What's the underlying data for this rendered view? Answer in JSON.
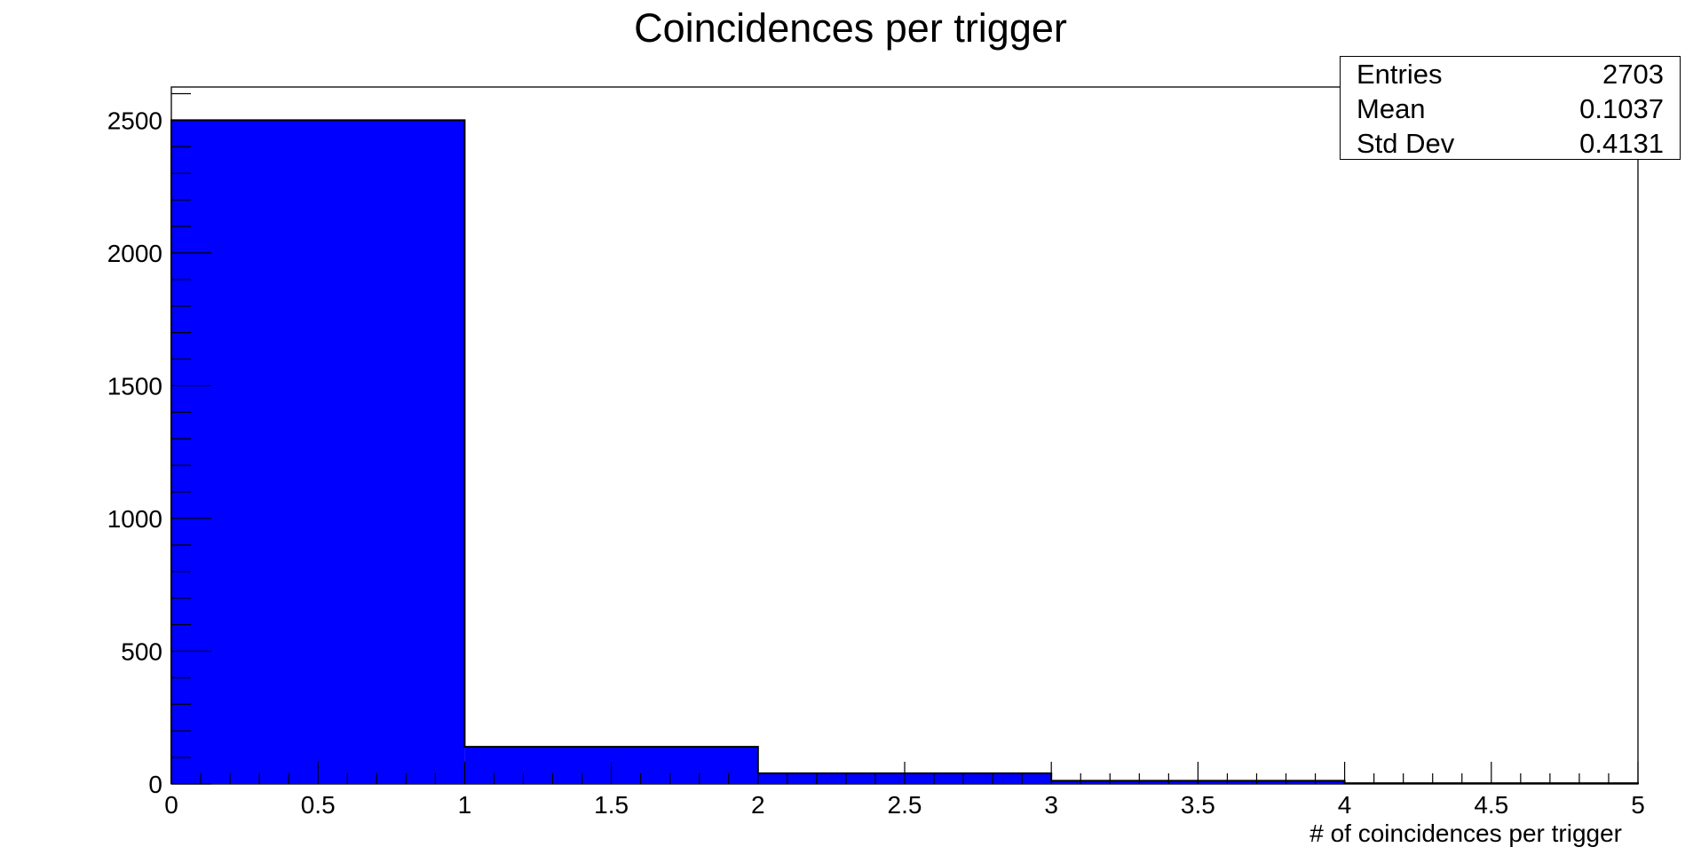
{
  "chart_data": {
    "type": "bar",
    "title": "Coincidences per trigger",
    "xlabel": "# of coincidences per trigger",
    "ylabel": "",
    "xlim": [
      0,
      5
    ],
    "ylim": [
      0,
      2625
    ],
    "x_ticks": [
      "0",
      "0.5",
      "1",
      "1.5",
      "2",
      "2.5",
      "3",
      "3.5",
      "4",
      "4.5",
      "5"
    ],
    "y_ticks": [
      "0",
      "500",
      "1000",
      "1500",
      "2000",
      "2500"
    ],
    "bin_edges": [
      0,
      1,
      2,
      3,
      4,
      5
    ],
    "values": [
      2500,
      140,
      40,
      12,
      3
    ],
    "fill_color": "#0000ff",
    "grid": false,
    "stats_box": {
      "position": "top-right",
      "rows": [
        {
          "label": "Entries",
          "value": "2703"
        },
        {
          "label": "Mean",
          "value": "0.1037"
        },
        {
          "label": "Std Dev",
          "value": "0.4131"
        }
      ]
    }
  }
}
